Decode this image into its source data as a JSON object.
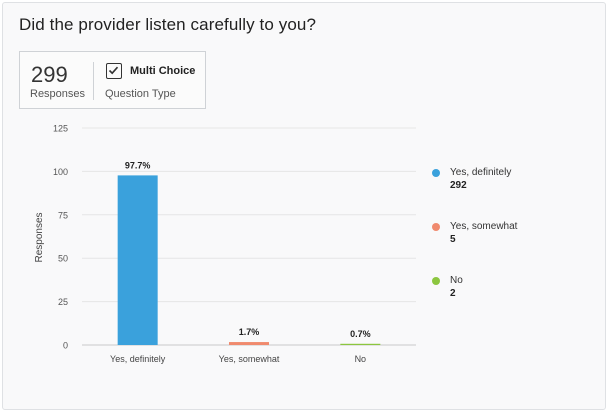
{
  "title": "Did the provider listen carefully to you?",
  "stats": {
    "responses_count": "299",
    "responses_label": "Responses",
    "question_type_value": "Multi Choice",
    "question_type_label": "Question Type",
    "question_type_icon": "checkbox-icon"
  },
  "chart_data": {
    "type": "bar",
    "categories": [
      "Yes, definitely",
      "Yes, somewhat",
      "No"
    ],
    "values": [
      97.7,
      1.7,
      0.7
    ],
    "data_labels": [
      "97.7%",
      "1.7%",
      "0.7%"
    ],
    "colors": [
      "#3aa1dc",
      "#f08a6e",
      "#8cc63f"
    ],
    "ylabel": "Responses",
    "ylim": [
      0,
      125
    ],
    "yticks": [
      0,
      25,
      50,
      75,
      100,
      125
    ],
    "grid": true,
    "legend": {
      "placement": "right",
      "entries": [
        {
          "name": "Yes, definitely",
          "count": "292",
          "color": "#3aa1dc"
        },
        {
          "name": "Yes, somewhat",
          "count": "5",
          "color": "#f08a6e"
        },
        {
          "name": "No",
          "count": "2",
          "color": "#8cc63f"
        }
      ]
    }
  }
}
